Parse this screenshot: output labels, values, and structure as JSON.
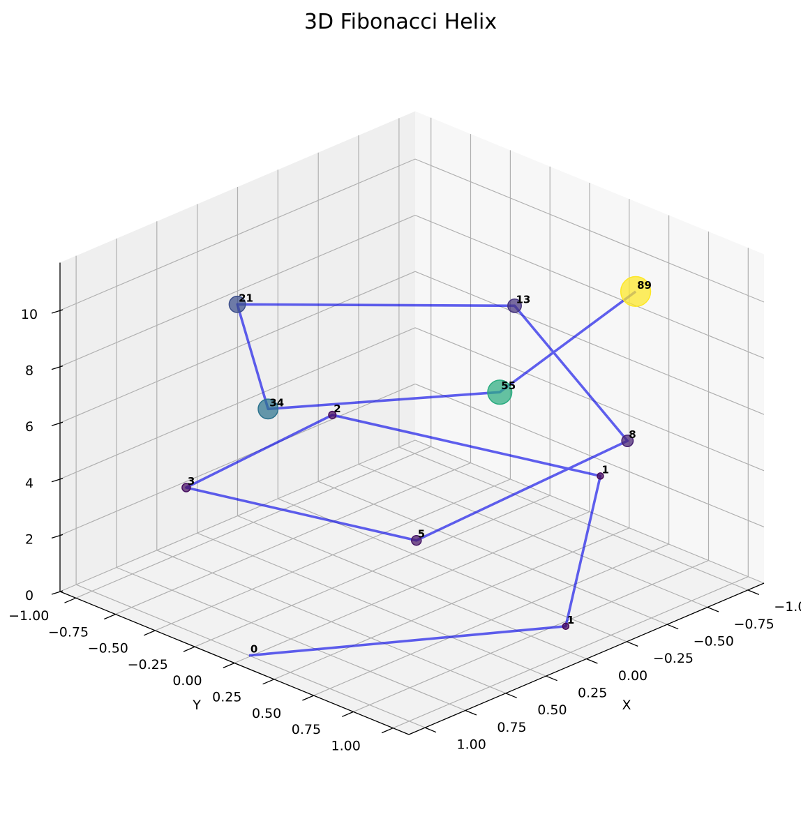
{
  "chart_data": {
    "type": "line3d",
    "title": "3D Fibonacci Helix",
    "xlabel": "X",
    "ylabel": "Y",
    "zlabel": "",
    "xlim": [
      -1.1,
      1.1
    ],
    "ylim": [
      -1.1,
      1.1
    ],
    "zlim": [
      0,
      11.7
    ],
    "x_ticks": [
      "−1.00",
      "−0.75",
      "−0.50",
      "−0.25",
      "0.00",
      "0.25",
      "0.50",
      "0.75",
      "1.00"
    ],
    "y_ticks": [
      "−1.00",
      "−0.75",
      "−0.50",
      "−0.25",
      "0.00",
      "0.25",
      "0.50",
      "0.75",
      "1.00"
    ],
    "z_ticks": [
      "0",
      "2",
      "4",
      "6",
      "8",
      "10"
    ],
    "grid": true,
    "line_color": "#0000e6",
    "colormap": "viridis",
    "points": [
      {
        "label": "0",
        "value": 0,
        "x": 1.0,
        "y": -0.01,
        "z": 0.0
      },
      {
        "label": "1",
        "value": 1,
        "x": 0.03,
        "y": 1.0,
        "z": 1.0
      },
      {
        "label": "1",
        "value": 1,
        "x": -0.98,
        "y": 0.19,
        "z": 2.0
      },
      {
        "label": "2",
        "value": 2,
        "x": -0.41,
        "y": -0.92,
        "z": 3.0
      },
      {
        "label": "3",
        "value": 3,
        "x": 0.78,
        "y": -0.63,
        "z": 4.0
      },
      {
        "label": "5",
        "value": 5,
        "x": 0.68,
        "y": 0.72,
        "z": 5.0
      },
      {
        "label": "8",
        "value": 8,
        "x": -0.49,
        "y": 0.86,
        "z": 6.0
      },
      {
        "label": "13",
        "value": 13,
        "x": -0.94,
        "y": -0.31,
        "z": 7.0
      },
      {
        "label": "21",
        "value": 21,
        "x": 0.1,
        "y": -1.0,
        "z": 8.0
      },
      {
        "label": "34",
        "value": 34,
        "x": 0.99,
        "y": 0.1,
        "z": 9.0
      },
      {
        "label": "55",
        "value": 55,
        "x": 0.37,
        "y": 0.93,
        "z": 10.0
      },
      {
        "label": "89",
        "value": 89,
        "x": -0.58,
        "y": 0.82,
        "z": 11.0
      }
    ]
  }
}
